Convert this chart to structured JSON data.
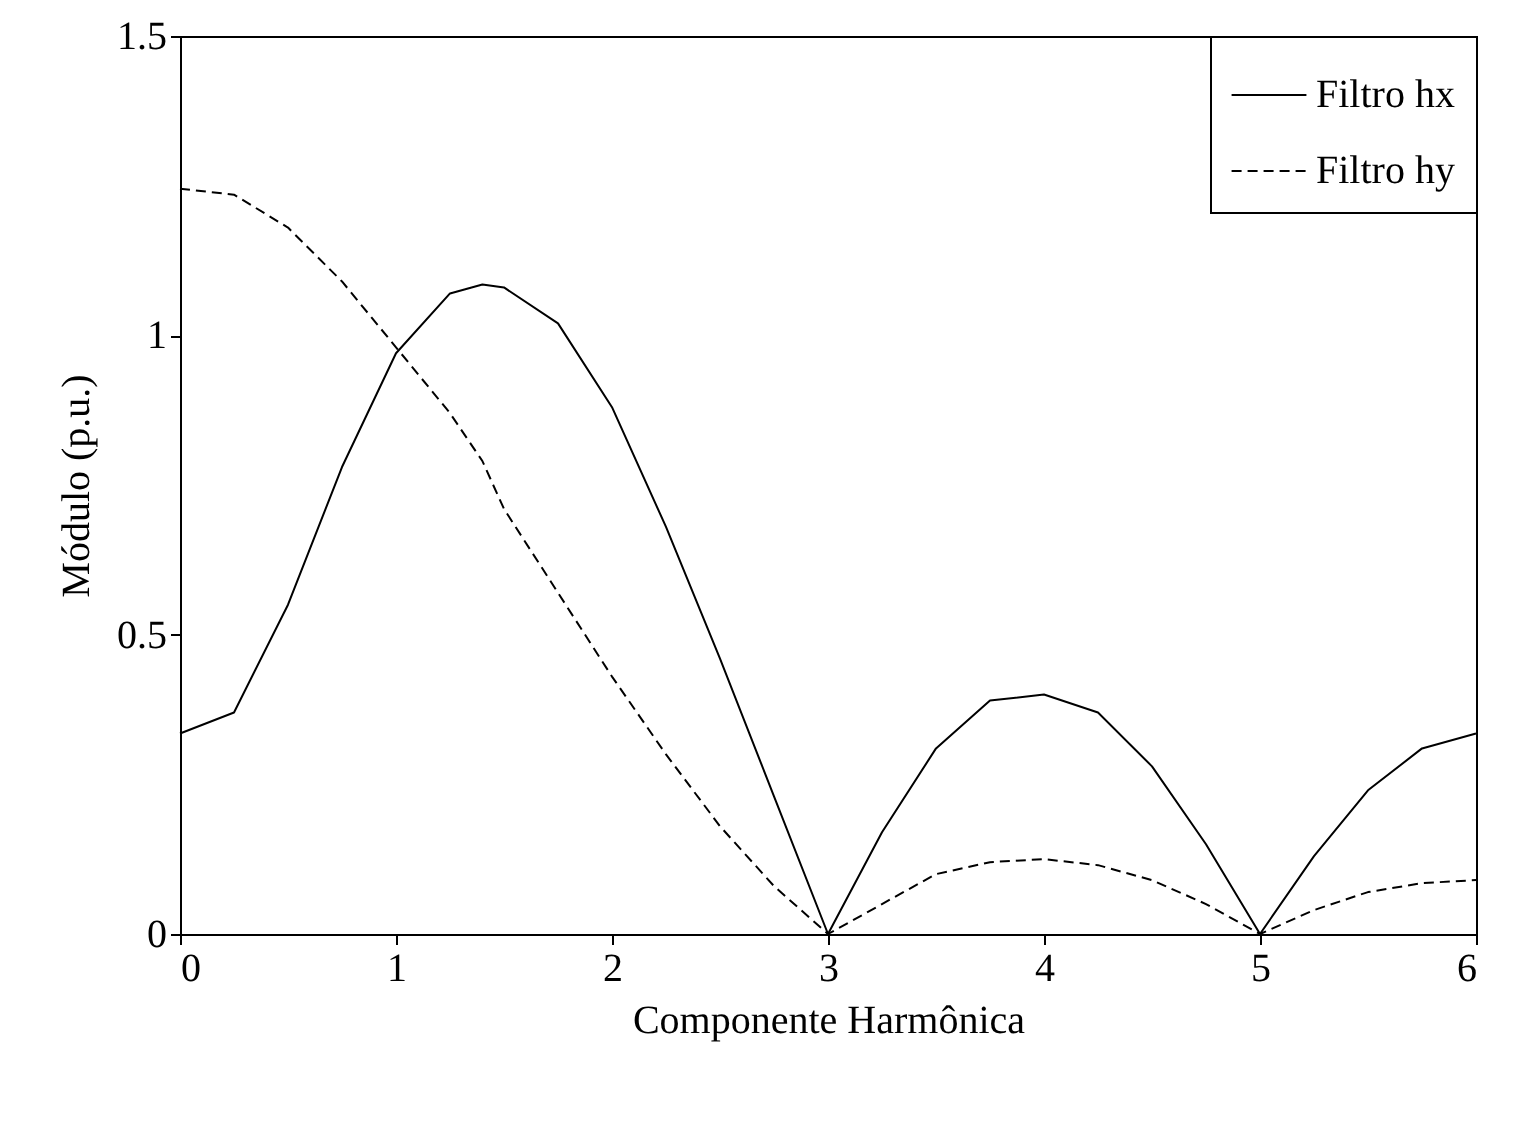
{
  "chart_data": {
    "type": "line",
    "xlabel": "Componente Harmônica",
    "ylabel": "Módulo (p.u.)",
    "xlim": [
      0,
      6
    ],
    "ylim": [
      0,
      1.5
    ],
    "xticks": [
      0,
      1,
      2,
      3,
      4,
      5,
      6
    ],
    "yticks": [
      0,
      0.5,
      1,
      1.5
    ],
    "grid": false,
    "legend": "top right",
    "marker": "none",
    "x": [
      0,
      0.25,
      0.5,
      0.75,
      1,
      1.25,
      1.4,
      1.5,
      1.75,
      2,
      2.25,
      2.5,
      2.75,
      3,
      3.25,
      3.5,
      3.75,
      4,
      4.25,
      4.5,
      4.75,
      5,
      5.25,
      5.5,
      5.75,
      6
    ],
    "series": [
      {
        "name": "Filtro hx",
        "color": "#000000",
        "line_style": "solid",
        "values": [
          0.335,
          0.37,
          0.55,
          0.78,
          0.97,
          1.07,
          1.085,
          1.08,
          1.02,
          0.88,
          0.68,
          0.46,
          0.23,
          0,
          0.17,
          0.31,
          0.39,
          0.4,
          0.37,
          0.28,
          0.15,
          0,
          0.13,
          0.24,
          0.31,
          0.335
        ]
      },
      {
        "name": "Filtro hy",
        "color": "#000000",
        "line_style": "dashed",
        "values": [
          1.245,
          1.235,
          1.18,
          1.09,
          0.98,
          0.87,
          0.79,
          0.71,
          0.57,
          0.43,
          0.3,
          0.18,
          0.08,
          0,
          0.05,
          0.1,
          0.12,
          0.125,
          0.115,
          0.09,
          0.05,
          0,
          0.04,
          0.07,
          0.085,
          0.09
        ]
      }
    ]
  }
}
